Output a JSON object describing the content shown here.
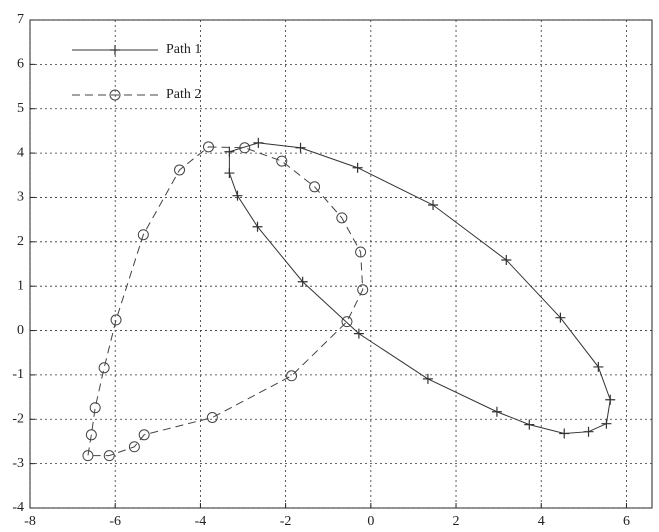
{
  "chart_data": {
    "type": "line",
    "xlim": [
      -8,
      6.6
    ],
    "xticks": [
      -8,
      -6,
      -4,
      -2,
      0,
      2,
      4,
      6
    ],
    "ylim": [
      -4,
      7
    ],
    "yticks": [
      -4,
      -3,
      -2,
      -1,
      0,
      1,
      2,
      3,
      4,
      5,
      6,
      7
    ],
    "grid": true,
    "legend": "upper left",
    "series": [
      {
        "name": "Path 1",
        "color": "#333333",
        "linestyle": "solid",
        "marker": "+",
        "closed": true,
        "x": [
          -2.64,
          -1.65,
          -0.31,
          1.46,
          3.18,
          4.45,
          5.34,
          5.62,
          5.53,
          5.11,
          4.54,
          3.72,
          2.96,
          1.34,
          -0.28,
          -1.6,
          -2.66,
          -3.13,
          -3.32,
          -3.32
        ],
        "values": [
          4.23,
          4.12,
          3.67,
          2.83,
          1.59,
          0.29,
          -0.82,
          -1.56,
          -2.1,
          -2.28,
          -2.32,
          -2.12,
          -1.83,
          -1.09,
          -0.07,
          1.1,
          2.34,
          3.04,
          3.55,
          4.03
        ]
      },
      {
        "name": "Path 2",
        "color": "#444444",
        "linestyle": "dashed",
        "marker": "o",
        "closed": true,
        "x": [
          -3.81,
          -2.96,
          -2.09,
          -1.32,
          -0.68,
          -0.24,
          -0.19,
          -0.56,
          -1.86,
          -3.72,
          -5.32,
          -5.55,
          -6.14,
          -6.64,
          -6.56,
          -6.47,
          -6.26,
          -5.98,
          -5.34,
          -4.49
        ],
        "values": [
          4.14,
          4.12,
          3.82,
          3.24,
          2.54,
          1.77,
          0.92,
          0.2,
          -1.02,
          -1.96,
          -2.35,
          -2.62,
          -2.82,
          -2.82,
          -2.35,
          -1.74,
          -0.84,
          0.24,
          2.16,
          3.62
        ]
      }
    ]
  }
}
